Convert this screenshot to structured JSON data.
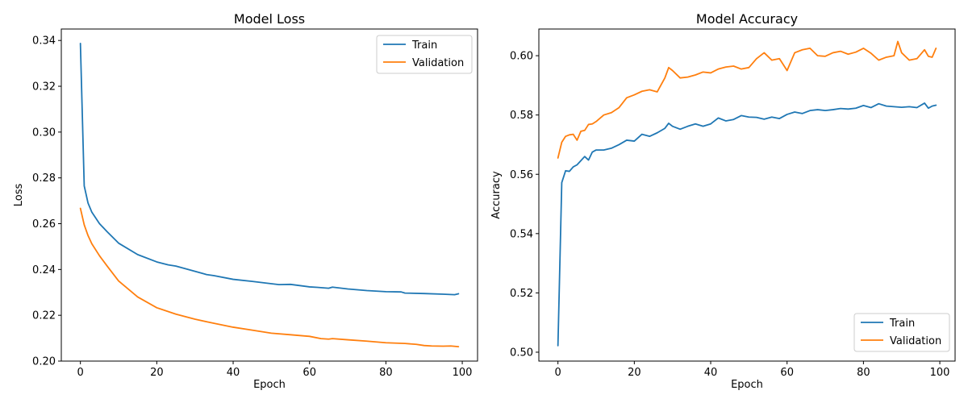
{
  "chart_data": [
    {
      "type": "line",
      "title": "Model Loss",
      "xlabel": "Epoch",
      "ylabel": "Loss",
      "xlim": [
        -5,
        104
      ],
      "ylim": [
        0.2,
        0.345
      ],
      "xticks": [
        0,
        20,
        40,
        60,
        80,
        100
      ],
      "xtick_labels": [
        "0",
        "20",
        "40",
        "60",
        "80",
        "100"
      ],
      "yticks": [
        0.2,
        0.22,
        0.24,
        0.26,
        0.28,
        0.3,
        0.32,
        0.34
      ],
      "ytick_labels": [
        "0.20",
        "0.22",
        "0.24",
        "0.26",
        "0.28",
        "0.30",
        "0.32",
        "0.34"
      ],
      "grid": false,
      "legend": "top-right",
      "series": [
        {
          "name": "Train",
          "color": "#1f77b4",
          "x": [
            0,
            1,
            2,
            3,
            5,
            7,
            10,
            15,
            20,
            23,
            25,
            30,
            33,
            35,
            40,
            45,
            50,
            52,
            55,
            60,
            62,
            65,
            66,
            70,
            75,
            80,
            84,
            85,
            90,
            95,
            98,
            99
          ],
          "values": [
            0.3387,
            0.2765,
            0.269,
            0.265,
            0.26,
            0.2565,
            0.2515,
            0.2465,
            0.2433,
            0.242,
            0.2415,
            0.2392,
            0.2378,
            0.2373,
            0.2357,
            0.2348,
            0.2338,
            0.2334,
            0.2335,
            0.2324,
            0.2322,
            0.2318,
            0.2323,
            0.2315,
            0.2308,
            0.2303,
            0.2302,
            0.2297,
            0.2295,
            0.2292,
            0.229,
            0.2294
          ]
        },
        {
          "name": "Validation",
          "color": "#ff7f0e",
          "x": [
            0,
            1,
            2,
            3,
            5,
            7,
            10,
            15,
            20,
            25,
            30,
            33,
            35,
            40,
            45,
            50,
            55,
            60,
            63,
            65,
            66,
            70,
            75,
            80,
            85,
            88,
            90,
            92,
            95,
            97,
            99
          ],
          "values": [
            0.2667,
            0.2595,
            0.2548,
            0.2512,
            0.246,
            0.2415,
            0.235,
            0.228,
            0.2233,
            0.2205,
            0.2183,
            0.2172,
            0.2165,
            0.2148,
            0.2135,
            0.2122,
            0.2115,
            0.2108,
            0.2098,
            0.2096,
            0.2098,
            0.2093,
            0.2087,
            0.208,
            0.2077,
            0.2073,
            0.2068,
            0.2066,
            0.2065,
            0.2066,
            0.2063
          ]
        }
      ]
    },
    {
      "type": "line",
      "title": "Model Accuracy",
      "xlabel": "Epoch",
      "ylabel": "Accuracy",
      "xlim": [
        -5,
        104
      ],
      "ylim": [
        0.497,
        0.609
      ],
      "xticks": [
        0,
        20,
        40,
        60,
        80,
        100
      ],
      "xtick_labels": [
        "0",
        "20",
        "40",
        "60",
        "80",
        "100"
      ],
      "yticks": [
        0.5,
        0.52,
        0.54,
        0.56,
        0.58,
        0.6
      ],
      "ytick_labels": [
        "0.50",
        "0.52",
        "0.54",
        "0.56",
        "0.58",
        "0.60"
      ],
      "grid": false,
      "legend": "bottom-right",
      "series": [
        {
          "name": "Train",
          "color": "#1f77b4",
          "x": [
            0,
            1,
            2,
            3,
            4,
            5,
            6,
            7,
            8,
            9,
            10,
            12,
            14,
            16,
            18,
            20,
            22,
            24,
            26,
            28,
            29,
            30,
            32,
            34,
            36,
            38,
            40,
            42,
            44,
            46,
            48,
            50,
            52,
            54,
            56,
            58,
            60,
            62,
            64,
            66,
            68,
            70,
            72,
            74,
            76,
            78,
            80,
            82,
            84,
            86,
            88,
            90,
            92,
            94,
            96,
            97,
            98,
            99
          ],
          "values": [
            0.5022,
            0.5572,
            0.5612,
            0.561,
            0.5625,
            0.5632,
            0.5646,
            0.566,
            0.5648,
            0.5675,
            0.5682,
            0.5682,
            0.5688,
            0.57,
            0.5715,
            0.5712,
            0.5735,
            0.5728,
            0.574,
            0.5755,
            0.5772,
            0.5762,
            0.5752,
            0.5762,
            0.577,
            0.5762,
            0.577,
            0.579,
            0.578,
            0.5785,
            0.5798,
            0.5793,
            0.5792,
            0.5786,
            0.5793,
            0.5788,
            0.5802,
            0.581,
            0.5805,
            0.5815,
            0.5818,
            0.5815,
            0.5818,
            0.5822,
            0.582,
            0.5823,
            0.5832,
            0.5825,
            0.5838,
            0.583,
            0.5828,
            0.5826,
            0.5828,
            0.5825,
            0.584,
            0.5823,
            0.583,
            0.5833
          ]
        },
        {
          "name": "Validation",
          "color": "#ff7f0e",
          "x": [
            0,
            1,
            2,
            3,
            4,
            5,
            6,
            7,
            8,
            9,
            10,
            12,
            14,
            16,
            18,
            20,
            22,
            24,
            26,
            28,
            29,
            30,
            32,
            34,
            36,
            38,
            40,
            42,
            44,
            46,
            48,
            50,
            52,
            54,
            56,
            58,
            60,
            62,
            64,
            66,
            68,
            70,
            72,
            74,
            76,
            78,
            80,
            82,
            84,
            86,
            88,
            89,
            90,
            92,
            94,
            96,
            97,
            98,
            99
          ],
          "values": [
            0.5655,
            0.5708,
            0.5728,
            0.5733,
            0.5735,
            0.5715,
            0.5745,
            0.5748,
            0.5768,
            0.577,
            0.5778,
            0.58,
            0.5808,
            0.5825,
            0.5858,
            0.5868,
            0.588,
            0.5885,
            0.5878,
            0.5925,
            0.596,
            0.595,
            0.5925,
            0.5928,
            0.5935,
            0.5945,
            0.5942,
            0.5955,
            0.5962,
            0.5965,
            0.5955,
            0.596,
            0.599,
            0.601,
            0.5985,
            0.599,
            0.595,
            0.601,
            0.602,
            0.6025,
            0.6,
            0.5998,
            0.601,
            0.6015,
            0.6005,
            0.6012,
            0.6025,
            0.6008,
            0.5985,
            0.5995,
            0.6,
            0.6048,
            0.601,
            0.5985,
            0.599,
            0.602,
            0.5998,
            0.5995,
            0.6025
          ]
        }
      ]
    }
  ]
}
